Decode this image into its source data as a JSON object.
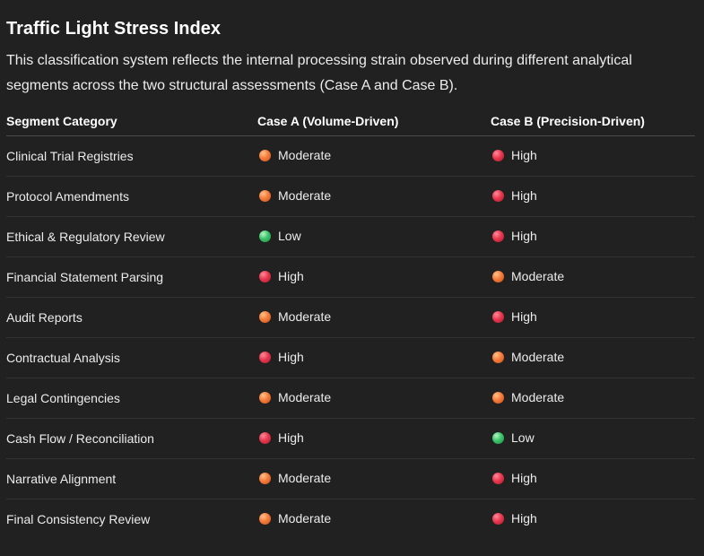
{
  "title": "Traffic Light Stress Index",
  "intro": "This classification system reflects the internal processing strain observed during different analytical segments across the two structural assessments (Case A and Case B).",
  "colors": {
    "High": "#e8384f",
    "Moderate": "#f57c3b",
    "Low": "#3cc46a"
  },
  "table": {
    "headers": [
      "Segment Category",
      "Case A (Volume-Driven)",
      "Case B (Precision-Driven)"
    ],
    "rows": [
      {
        "segment": "Clinical Trial Registries",
        "case_a": "Moderate",
        "case_b": "High"
      },
      {
        "segment": "Protocol Amendments",
        "case_a": "Moderate",
        "case_b": "High"
      },
      {
        "segment": "Ethical & Regulatory Review",
        "case_a": "Low",
        "case_b": "High"
      },
      {
        "segment": "Financial Statement Parsing",
        "case_a": "High",
        "case_b": "Moderate"
      },
      {
        "segment": "Audit Reports",
        "case_a": "Moderate",
        "case_b": "High"
      },
      {
        "segment": "Contractual Analysis",
        "case_a": "High",
        "case_b": "Moderate"
      },
      {
        "segment": "Legal Contingencies",
        "case_a": "Moderate",
        "case_b": "Moderate"
      },
      {
        "segment": "Cash Flow / Reconciliation",
        "case_a": "High",
        "case_b": "Low"
      },
      {
        "segment": "Narrative Alignment",
        "case_a": "Moderate",
        "case_b": "High"
      },
      {
        "segment": "Final Consistency Review",
        "case_a": "Moderate",
        "case_b": "High"
      }
    ]
  }
}
